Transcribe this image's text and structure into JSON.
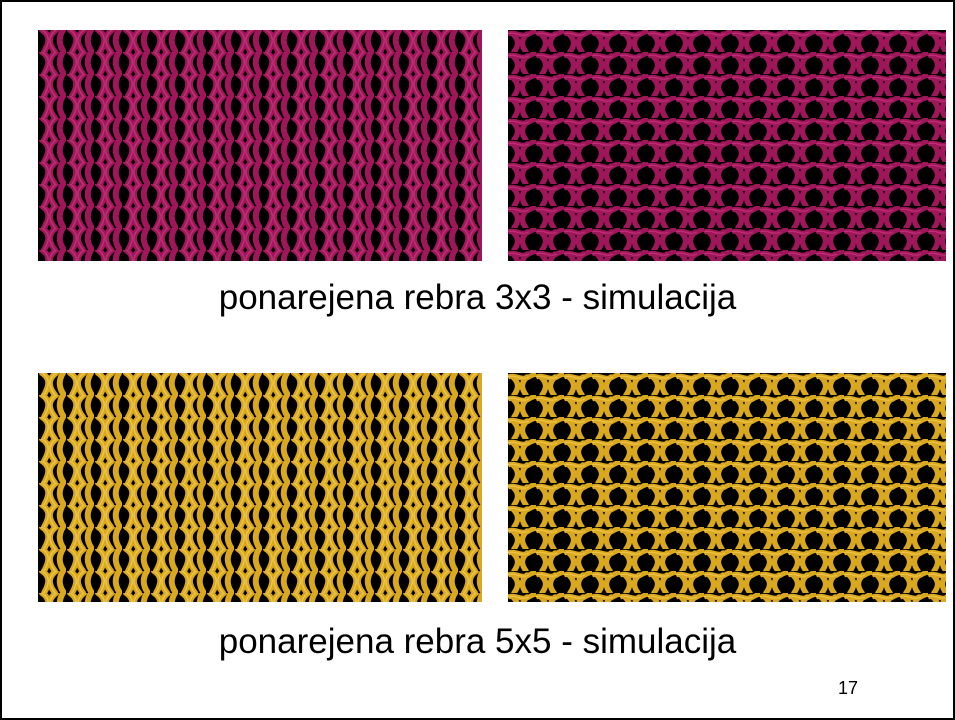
{
  "slide": {
    "caption_top": "ponarejena rebra 3x3 - simulacija",
    "caption_bottom": "ponarejena rebra 5x5 - simulacija",
    "page_number": "17"
  },
  "colors": {
    "magenta_yarn": "#a0165a",
    "gold_yarn": "#d9a81e",
    "background": "#000000"
  }
}
